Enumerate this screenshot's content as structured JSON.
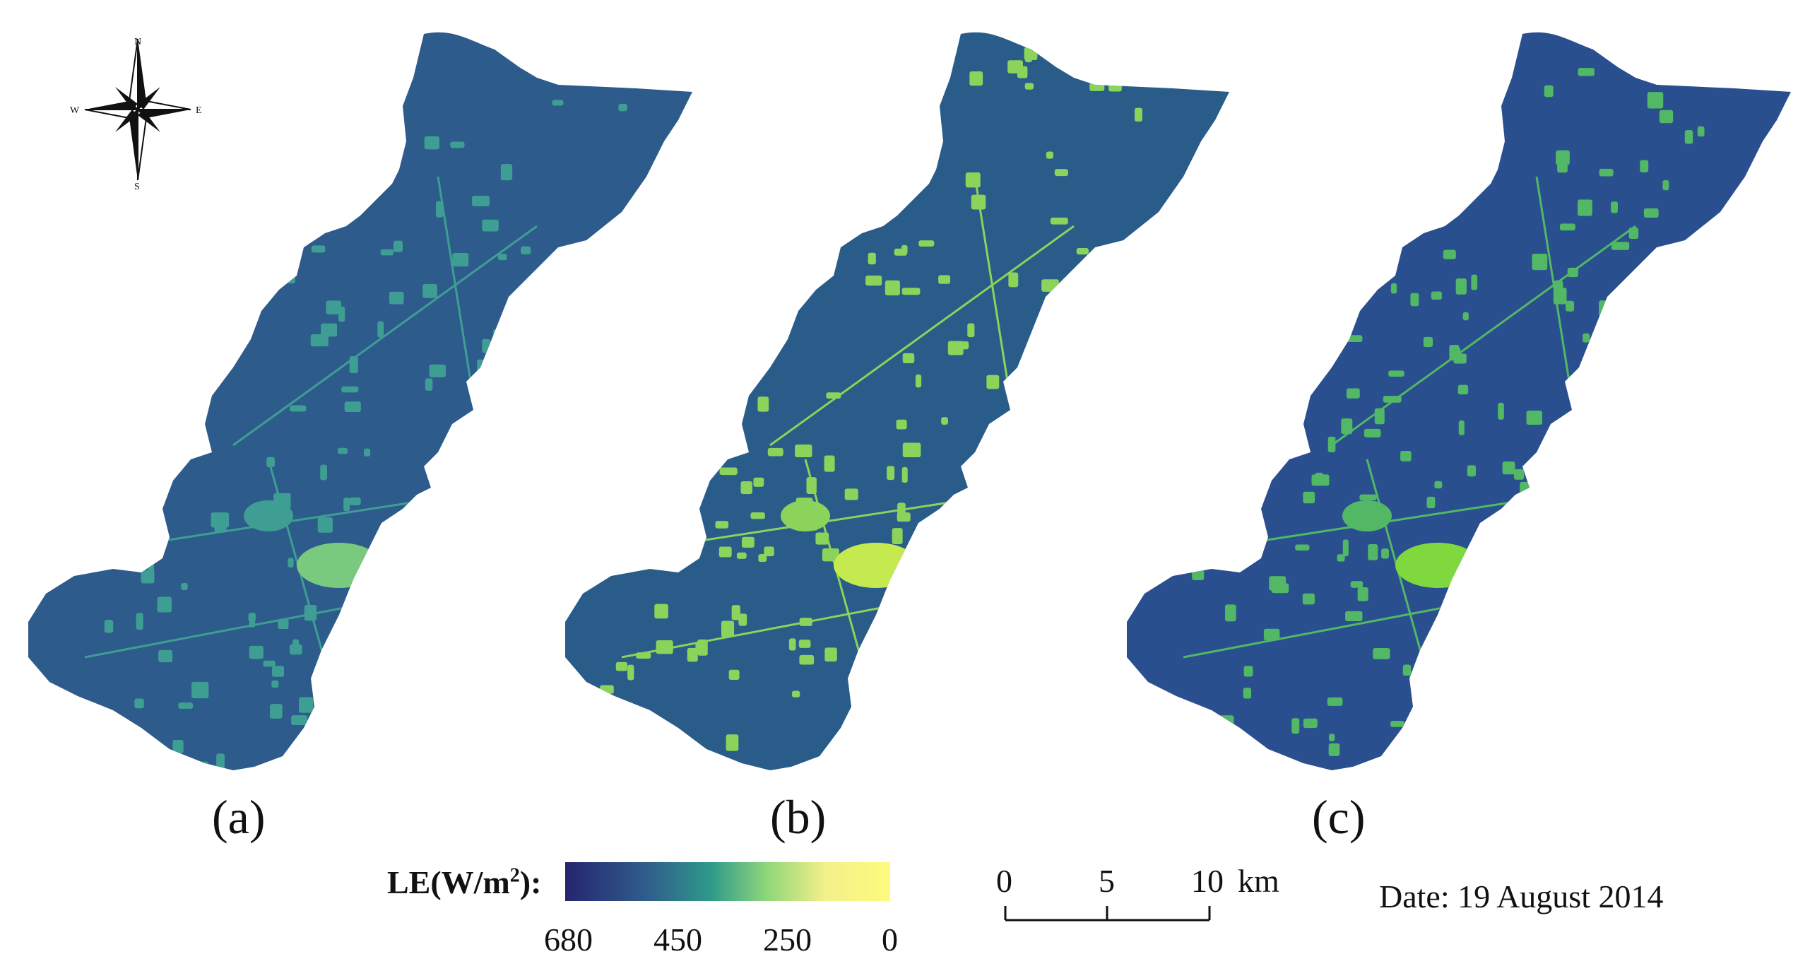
{
  "compass": {
    "n": "N",
    "s": "S",
    "e": "E",
    "w": "W"
  },
  "panels": [
    {
      "id": "a",
      "label": "(a)"
    },
    {
      "id": "b",
      "label": "(b)"
    },
    {
      "id": "c",
      "label": "(c)"
    }
  ],
  "legend": {
    "title_prefix": "LE(W/m",
    "title_sup": "2",
    "title_suffix": "):",
    "ticks": [
      "680",
      "450",
      "250",
      "0"
    ],
    "colors": [
      "#26256e",
      "#2f5d8c",
      "#2f9a8a",
      "#8fd67a",
      "#f2f08a",
      "#fdfb7e"
    ]
  },
  "scalebar": {
    "ticks": [
      "0",
      "5",
      "10"
    ],
    "unit": "km"
  },
  "date": "Date: 19 August 2014",
  "map_colors": {
    "a": {
      "base": "#2d5b8c",
      "patch": "#3f9e93",
      "bright": "#79c97f"
    },
    "b": {
      "base": "#2a5c8a",
      "patch": "#8bd35a",
      "bright": "#c5ea4f"
    },
    "c": {
      "base": "#2a4f8f",
      "patch": "#52b865",
      "bright": "#7fd93e"
    }
  }
}
